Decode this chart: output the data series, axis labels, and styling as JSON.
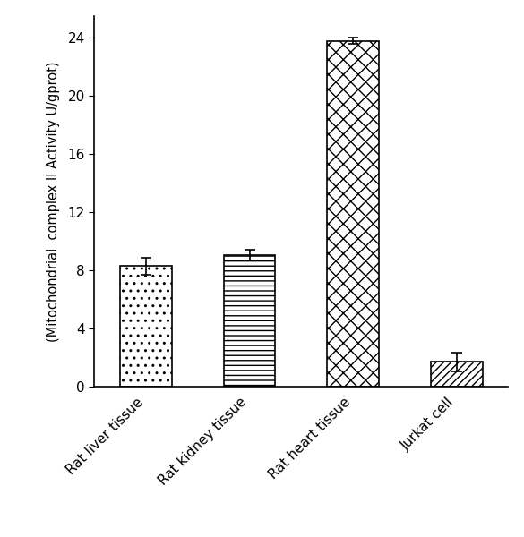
{
  "categories": [
    "Rat liver tissue",
    "Rat kidney tissue",
    "Rat heart tissue",
    "Jurkat cell"
  ],
  "values": [
    8.3,
    9.05,
    23.8,
    1.7
  ],
  "errors": [
    0.6,
    0.35,
    0.2,
    0.65
  ],
  "hatches": [
    "..",
    "---",
    "//\\\\",
    "////"
  ],
  "bar_color": "#ffffff",
  "bar_edgecolor": "#000000",
  "ylabel": "(Mitochondrial  complex II Activity U/gprot)",
  "ylim": [
    0,
    25.5
  ],
  "yticks": [
    0,
    4,
    8,
    12,
    16,
    20,
    24
  ],
  "bar_width": 0.5,
  "figsize": [
    5.85,
    6.0
  ],
  "dpi": 100,
  "xlabel_fontsize": 11,
  "ylabel_fontsize": 10.5,
  "tick_fontsize": 11,
  "background_color": "#ffffff"
}
